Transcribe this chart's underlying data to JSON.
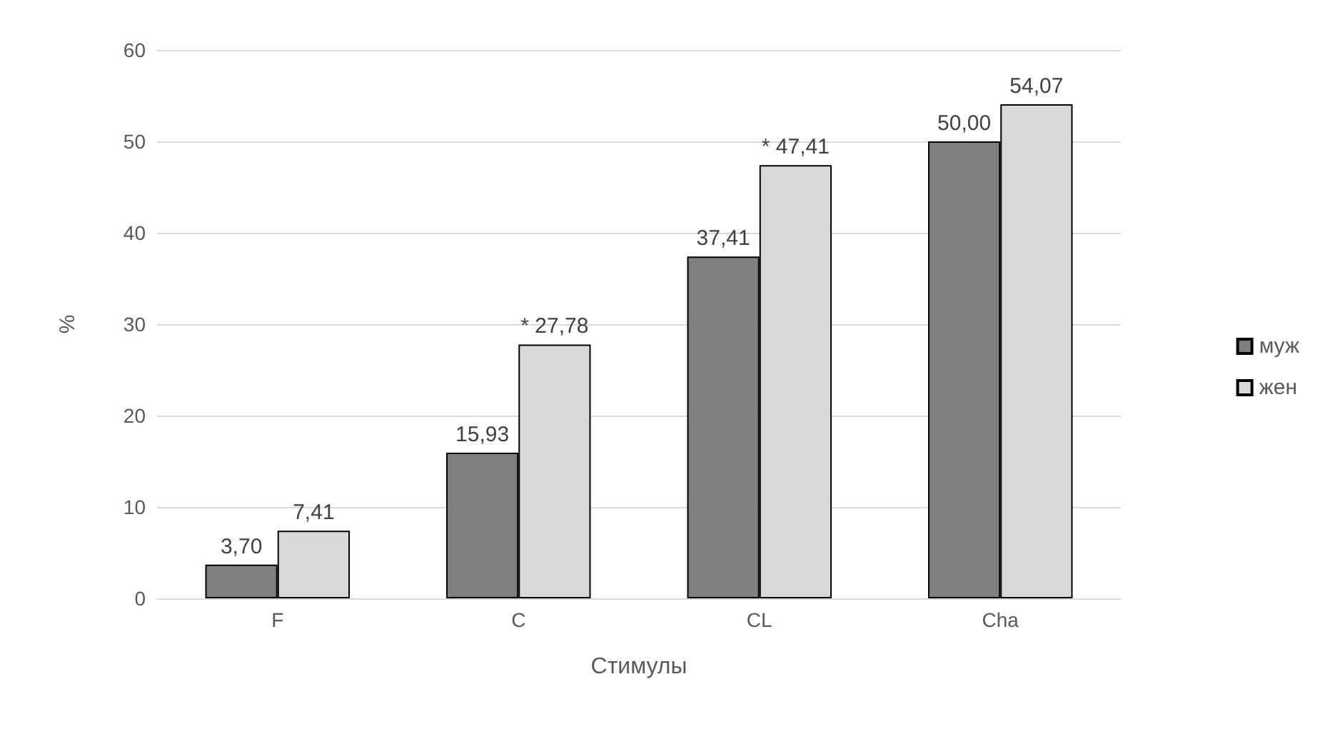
{
  "chart_data": {
    "type": "bar",
    "xlabel": "Стимулы",
    "ylabel": "%",
    "categories": [
      "F",
      "C",
      "CL",
      "Cha"
    ],
    "series": [
      {
        "name": "муж",
        "color": "#7f7f7f",
        "values": [
          3.7,
          15.93,
          37.41,
          50.0
        ],
        "value_labels": [
          "3,70",
          "15,93",
          "37,41",
          "50,00"
        ]
      },
      {
        "name": "жен",
        "color": "#d9d9d9",
        "values": [
          7.41,
          27.78,
          47.41,
          54.07
        ],
        "value_labels": [
          "7,41",
          "* 27,78",
          "* 47,41",
          "54,07"
        ]
      }
    ],
    "ylim": [
      0,
      60
    ],
    "yticks": [
      0,
      10,
      20,
      30,
      40,
      50,
      60
    ],
    "grid": "y",
    "legend": "right"
  }
}
